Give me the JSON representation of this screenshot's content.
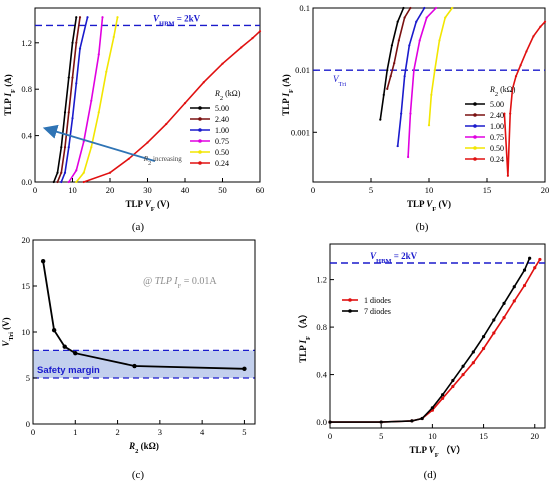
{
  "chart_data": [
    {
      "id": "a",
      "type": "line",
      "panel_label": "(a)",
      "xlabel_main": "TLP",
      "xlabel_var": "V",
      "xlabel_sub": "F",
      "xlabel_unit": "(V)",
      "ylabel_main": "TLP",
      "ylabel_var": "I",
      "ylabel_sub": "F",
      "ylabel_unit": "(A)",
      "xlim": [
        0,
        60
      ],
      "ylim": [
        0,
        1.5
      ],
      "xticks": [
        "0",
        "10",
        "20",
        "30",
        "40",
        "50",
        "60"
      ],
      "yticks": [
        "0.0",
        "0.4",
        "0.8",
        "1.2"
      ],
      "hline": {
        "y": 1.35,
        "color": "#1a1acc",
        "label_var": "V",
        "label_sub": "HBM",
        "label_rest": " = 2kV"
      },
      "legend_title_var": "R",
      "legend_title_sub": "2",
      "legend_title_unit": " (kΩ)",
      "annotation_var": "R",
      "annotation_sub": "2",
      "annotation_rest": " increasing",
      "series": [
        {
          "name": "5.00",
          "color": "#000000",
          "marker": "square",
          "x": [
            5,
            6,
            7,
            8,
            9,
            10,
            11
          ],
          "y": [
            0,
            0.08,
            0.3,
            0.6,
            0.9,
            1.2,
            1.42
          ]
        },
        {
          "name": "2.40",
          "color": "#7a1010",
          "marker": "star",
          "x": [
            6,
            7,
            8,
            9,
            10,
            11,
            12
          ],
          "y": [
            0,
            0.08,
            0.3,
            0.6,
            0.9,
            1.2,
            1.42
          ]
        },
        {
          "name": "1.00",
          "color": "#1a1acc",
          "marker": "triangle",
          "x": [
            7,
            8,
            9,
            10,
            11,
            12,
            14
          ],
          "y": [
            0,
            0.08,
            0.3,
            0.55,
            0.85,
            1.15,
            1.42
          ]
        },
        {
          "name": "0.75",
          "color": "#e000e0",
          "marker": "triangle-down",
          "x": [
            9,
            11,
            13,
            15,
            17,
            18
          ],
          "y": [
            0,
            0.1,
            0.35,
            0.7,
            1.1,
            1.42
          ]
        },
        {
          "name": "0.50",
          "color": "#f2e600",
          "marker": "circle",
          "x": [
            11,
            13,
            15,
            17,
            19,
            21,
            22
          ],
          "y": [
            0,
            0.08,
            0.3,
            0.6,
            0.95,
            1.25,
            1.42
          ]
        },
        {
          "name": "0.24",
          "color": "#e01010",
          "marker": "plus",
          "x": [
            13,
            20,
            25,
            30,
            35,
            40,
            45,
            50,
            55,
            58,
            60
          ],
          "y": [
            0,
            0.08,
            0.2,
            0.34,
            0.5,
            0.68,
            0.86,
            1.02,
            1.16,
            1.24,
            1.3
          ]
        }
      ]
    },
    {
      "id": "b",
      "type": "line",
      "panel_label": "(b)",
      "yscale": "log",
      "xlabel_main": "TLP",
      "xlabel_var": "V",
      "xlabel_sub": "F",
      "xlabel_unit": "(V)",
      "ylabel_main": "TLP",
      "ylabel_var": "I",
      "ylabel_sub": "F",
      "ylabel_unit": "(A)",
      "xlim": [
        0,
        20
      ],
      "ylim": [
        0.0001585,
        0.1
      ],
      "xticks": [
        "0",
        "5",
        "10",
        "15",
        "20"
      ],
      "yticks": [
        "0.001",
        "0.01",
        "0.1"
      ],
      "hline": {
        "y": 0.01,
        "color": "#1a1acc"
      },
      "vtrig_var": "V",
      "vtrig_sub": "Tri",
      "legend_title_var": "R",
      "legend_title_sub": "2",
      "legend_title_unit": " (kΩ)",
      "series": [
        {
          "name": "5.00",
          "color": "#000000",
          "x": [
            5.8,
            6.1,
            6.4,
            6.8,
            7.3,
            7.8
          ],
          "y": [
            0.0016,
            0.004,
            0.01,
            0.025,
            0.06,
            0.1
          ]
        },
        {
          "name": "2.40",
          "color": "#7a1010",
          "x": [
            6.4,
            6.7,
            7.0,
            7.4,
            7.9,
            8.4
          ],
          "y": [
            0.005,
            0.008,
            0.013,
            0.03,
            0.07,
            0.1
          ]
        },
        {
          "name": "1.00",
          "color": "#1a1acc",
          "x": [
            7.3,
            7.6,
            7.9,
            8.3,
            8.9,
            9.6
          ],
          "y": [
            0.0006,
            0.002,
            0.008,
            0.025,
            0.06,
            0.1
          ]
        },
        {
          "name": "0.75",
          "color": "#e000e0",
          "x": [
            8.2,
            8.4,
            8.7,
            9.2,
            9.8,
            10.6
          ],
          "y": [
            0.0004,
            0.002,
            0.01,
            0.03,
            0.07,
            0.1
          ]
        },
        {
          "name": "0.50",
          "color": "#f2e600",
          "x": [
            10.0,
            10.2,
            10.5,
            10.9,
            11.4,
            12.0
          ],
          "y": [
            0.0013,
            0.004,
            0.01,
            0.03,
            0.07,
            0.1
          ]
        },
        {
          "name": "0.24",
          "color": "#e01010",
          "x": [
            16.5,
            16.8,
            17.0,
            17.2,
            17.5,
            17.9,
            18.4,
            19.0,
            19.6,
            20.0
          ],
          "y": [
            0.002,
            0.0002,
            0.002,
            0.005,
            0.008,
            0.012,
            0.02,
            0.035,
            0.05,
            0.06
          ]
        }
      ]
    },
    {
      "id": "c",
      "type": "line",
      "panel_label": "(c)",
      "xlabel_var": "R",
      "xlabel_sub": "2",
      "xlabel_unit": " (kΩ)",
      "ylabel_var": "V",
      "ylabel_sub": "Tri",
      "ylabel_unit": " (V)",
      "xlim": [
        0,
        5.25
      ],
      "ylim": [
        0,
        20
      ],
      "xticks": [
        "0",
        "1",
        "2",
        "3",
        "4",
        "5"
      ],
      "yticks": [
        "0",
        "5",
        "10",
        "15",
        "20"
      ],
      "band": {
        "y0": 5,
        "y1": 8,
        "color": "#b9c8ea",
        "label": "Safety margin"
      },
      "annotation_main": "@ TLP ",
      "annotation_var": "I",
      "annotation_sub": "F",
      "annotation_rest": "= 0.01A",
      "series": [
        {
          "color": "#000000",
          "x": [
            0.24,
            0.5,
            0.75,
            1.0,
            2.4,
            5.0
          ],
          "y": [
            17.7,
            10.2,
            8.4,
            7.7,
            6.3,
            6.0
          ]
        }
      ]
    },
    {
      "id": "d",
      "type": "scatter",
      "panel_label": "(d)",
      "xlabel_main": "TLP",
      "xlabel_var": "V",
      "xlabel_sub": "F",
      "xlabel_unit": "（V）",
      "ylabel_main": "TLP",
      "ylabel_var": "I",
      "ylabel_sub": "F",
      "ylabel_unit": "（A）",
      "xlim": [
        0,
        21
      ],
      "ylim": [
        -0.05,
        1.5
      ],
      "xticks": [
        "0",
        "5",
        "10",
        "15",
        "20"
      ],
      "yticks": [
        "0.0",
        "0.4",
        "0.8",
        "1.2"
      ],
      "hline": {
        "y": 1.34,
        "color": "#1a1acc",
        "label_var": "V",
        "label_sub": "HBM",
        "label_rest": " = 2kV"
      },
      "series": [
        {
          "name": "1 diodes",
          "color": "#e01010",
          "x": [
            0,
            5,
            8,
            9,
            10,
            11,
            12,
            13,
            14,
            15,
            16,
            17,
            18,
            19,
            20,
            20.5
          ],
          "y": [
            0,
            0,
            0.01,
            0.03,
            0.1,
            0.2,
            0.3,
            0.4,
            0.5,
            0.62,
            0.75,
            0.88,
            1.02,
            1.15,
            1.3,
            1.37
          ]
        },
        {
          "name": "7 diodes",
          "color": "#000000",
          "x": [
            0,
            5,
            8,
            9,
            10,
            11,
            12,
            13,
            14,
            15,
            16,
            17,
            18,
            19,
            19.5
          ],
          "y": [
            0,
            0,
            0.01,
            0.03,
            0.12,
            0.23,
            0.35,
            0.47,
            0.59,
            0.72,
            0.86,
            1.0,
            1.14,
            1.28,
            1.38
          ]
        }
      ]
    }
  ]
}
